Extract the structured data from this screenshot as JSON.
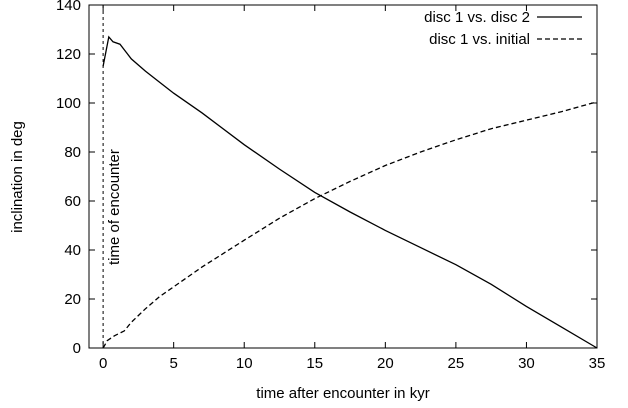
{
  "chart_data": {
    "type": "line",
    "title": "",
    "xlabel": "time after encounter in kyr",
    "ylabel": "inclination in deg",
    "xlim": [
      -1,
      35
    ],
    "ylim": [
      0,
      140
    ],
    "xticks": [
      0,
      5,
      10,
      15,
      20,
      25,
      30,
      35
    ],
    "yticks": [
      0,
      20,
      40,
      60,
      80,
      100,
      120,
      140
    ],
    "grid": false,
    "legend_position": "top-right",
    "series": [
      {
        "name": "disc 1 vs. disc 2",
        "style": "solid",
        "x": [
          0,
          0.4,
          0.7,
          1.2,
          1.6,
          2.0,
          3.0,
          4.0,
          5.0,
          7.0,
          10.0,
          12.5,
          15.0,
          17.5,
          20.0,
          22.5,
          25.0,
          27.5,
          30.0,
          32.5,
          35.0
        ],
        "y": [
          115,
          127,
          125,
          124,
          121,
          118,
          113,
          108.5,
          104,
          96,
          83,
          73,
          63.5,
          55.5,
          48,
          41,
          34,
          26,
          17,
          8.5,
          0
        ]
      },
      {
        "name": "disc 1 vs. initial",
        "style": "dashed",
        "x": [
          0,
          0.3,
          0.8,
          1.5,
          2.0,
          3.0,
          4.0,
          5.0,
          7.0,
          10.0,
          12.5,
          15.0,
          17.5,
          20.0,
          22.5,
          25.0,
          27.5,
          30.0,
          32.5,
          35.0
        ],
        "y": [
          0,
          3,
          5,
          7,
          10.5,
          16,
          21,
          25,
          33,
          44,
          53,
          61,
          68,
          74.5,
          80,
          85,
          89.5,
          93,
          96.5,
          100.5
        ]
      }
    ],
    "annotations": [
      {
        "text": "time of encounter",
        "x": 0,
        "style": "dashed-vertical-line"
      }
    ]
  },
  "colors": {
    "line": "#000000",
    "axis": "#000000",
    "background": "#ffffff"
  }
}
